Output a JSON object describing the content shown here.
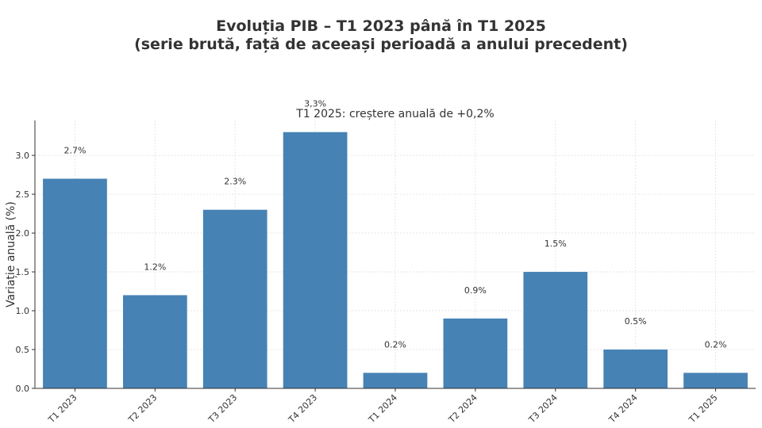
{
  "chart_data": {
    "type": "bar",
    "title": "Evoluția PIB – T1 2023 până în T1 2025",
    "title_line2": "(serie brută, față de aceeași perioadă a anului precedent)",
    "subtitle": "T1 2025: creștere anuală de +0,2%",
    "xlabel": "",
    "ylabel": "Variație anuală (%)",
    "categories": [
      "T1 2023",
      "T2 2023",
      "T3 2023",
      "T4 2023",
      "T1 2024",
      "T2 2024",
      "T3 2024",
      "T4 2024",
      "T1 2025"
    ],
    "values": [
      2.7,
      1.2,
      2.3,
      3.3,
      0.2,
      0.9,
      1.5,
      0.5,
      0.2
    ],
    "data_labels": [
      "2.7%",
      "1.2%",
      "2.3%",
      "3,3%",
      "0.2%",
      "0.9%",
      "1.5%",
      "0.5%",
      "0.2%"
    ],
    "yticks": [
      "0.0",
      "0.5",
      "1.0",
      "1.5",
      "2.0",
      "2.5",
      "3.0"
    ],
    "ylim": [
      0,
      3.45
    ],
    "grid": true,
    "bar_color": "#4682b4"
  }
}
